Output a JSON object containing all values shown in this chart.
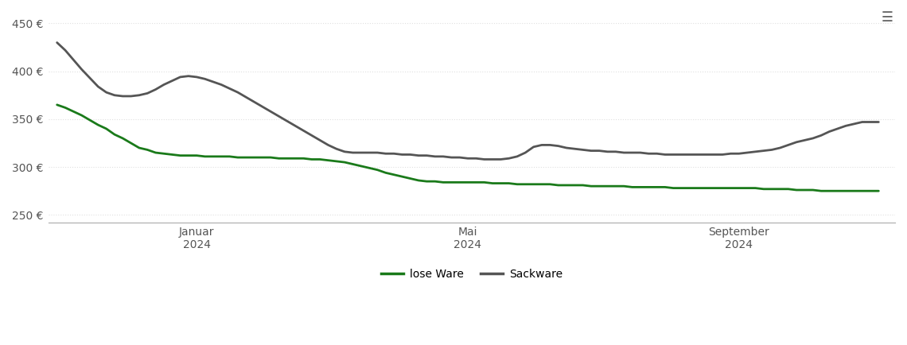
{
  "lose_ware_x": [
    0,
    1,
    2,
    3,
    4,
    5,
    6,
    7,
    8,
    9,
    10,
    11,
    12,
    13,
    14,
    15,
    16,
    17,
    18,
    19,
    20,
    21,
    22,
    23,
    24,
    25,
    26,
    27,
    28,
    29,
    30,
    31,
    32,
    33,
    34,
    35,
    36,
    37,
    38,
    39,
    40,
    41,
    42,
    43,
    44,
    45,
    46,
    47,
    48,
    49,
    50,
    51,
    52,
    53,
    54,
    55,
    56,
    57,
    58,
    59,
    60,
    61,
    62,
    63,
    64,
    65,
    66,
    67,
    68,
    69,
    70,
    71,
    72,
    73,
    74,
    75,
    76,
    77,
    78,
    79,
    80,
    81,
    82,
    83,
    84,
    85,
    86,
    87,
    88,
    89,
    90,
    91,
    92,
    93,
    94,
    95,
    96,
    97,
    98,
    99,
    100
  ],
  "lose_ware_y": [
    365,
    362,
    358,
    354,
    349,
    344,
    340,
    334,
    330,
    325,
    320,
    318,
    315,
    314,
    313,
    312,
    312,
    312,
    311,
    311,
    311,
    311,
    310,
    310,
    310,
    310,
    310,
    309,
    309,
    309,
    309,
    308,
    308,
    307,
    306,
    305,
    303,
    301,
    299,
    297,
    294,
    292,
    290,
    288,
    286,
    285,
    285,
    284,
    284,
    284,
    284,
    284,
    284,
    283,
    283,
    283,
    282,
    282,
    282,
    282,
    282,
    281,
    281,
    281,
    281,
    280,
    280,
    280,
    280,
    280,
    279,
    279,
    279,
    279,
    279,
    278,
    278,
    278,
    278,
    278,
    278,
    278,
    278,
    278,
    278,
    278,
    277,
    277,
    277,
    277,
    276,
    276,
    276,
    275,
    275,
    275,
    275,
    275,
    275,
    275,
    275
  ],
  "sackware_x": [
    0,
    1,
    2,
    3,
    4,
    5,
    6,
    7,
    8,
    9,
    10,
    11,
    12,
    13,
    14,
    15,
    16,
    17,
    18,
    19,
    20,
    21,
    22,
    23,
    24,
    25,
    26,
    27,
    28,
    29,
    30,
    31,
    32,
    33,
    34,
    35,
    36,
    37,
    38,
    39,
    40,
    41,
    42,
    43,
    44,
    45,
    46,
    47,
    48,
    49,
    50,
    51,
    52,
    53,
    54,
    55,
    56,
    57,
    58,
    59,
    60,
    61,
    62,
    63,
    64,
    65,
    66,
    67,
    68,
    69,
    70,
    71,
    72,
    73,
    74,
    75,
    76,
    77,
    78,
    79,
    80,
    81,
    82,
    83,
    84,
    85,
    86,
    87,
    88,
    89,
    90,
    91,
    92,
    93,
    94,
    95,
    96,
    97,
    98,
    99,
    100
  ],
  "sackware_y": [
    430,
    422,
    412,
    402,
    393,
    384,
    378,
    375,
    374,
    374,
    375,
    377,
    381,
    386,
    390,
    394,
    395,
    394,
    392,
    389,
    386,
    382,
    378,
    373,
    368,
    363,
    358,
    353,
    348,
    343,
    338,
    333,
    328,
    323,
    319,
    316,
    315,
    315,
    315,
    315,
    314,
    314,
    313,
    313,
    312,
    312,
    311,
    311,
    310,
    310,
    309,
    309,
    308,
    308,
    308,
    309,
    311,
    315,
    321,
    323,
    323,
    322,
    320,
    319,
    318,
    317,
    317,
    316,
    316,
    315,
    315,
    315,
    314,
    314,
    313,
    313,
    313,
    313,
    313,
    313,
    313,
    313,
    314,
    314,
    315,
    316,
    317,
    318,
    320,
    323,
    326,
    328,
    330,
    333,
    337,
    340,
    343,
    345,
    347,
    347,
    347
  ],
  "x_tick_positions": [
    17,
    50,
    83
  ],
  "x_tick_labels": [
    "Januar\n2024",
    "Mai\n2024",
    "September\n2024"
  ],
  "y_ticks": [
    250,
    300,
    350,
    400,
    450
  ],
  "ylim": [
    242,
    462
  ],
  "xlim": [
    -1,
    102
  ],
  "lose_ware_color": "#1a7a1a",
  "sackware_color": "#555555",
  "legend_lose_ware": "lose Ware",
  "legend_sackware": "Sackware",
  "background_color": "#ffffff",
  "grid_color": "#e0e0e0",
  "line_width": 2.0
}
